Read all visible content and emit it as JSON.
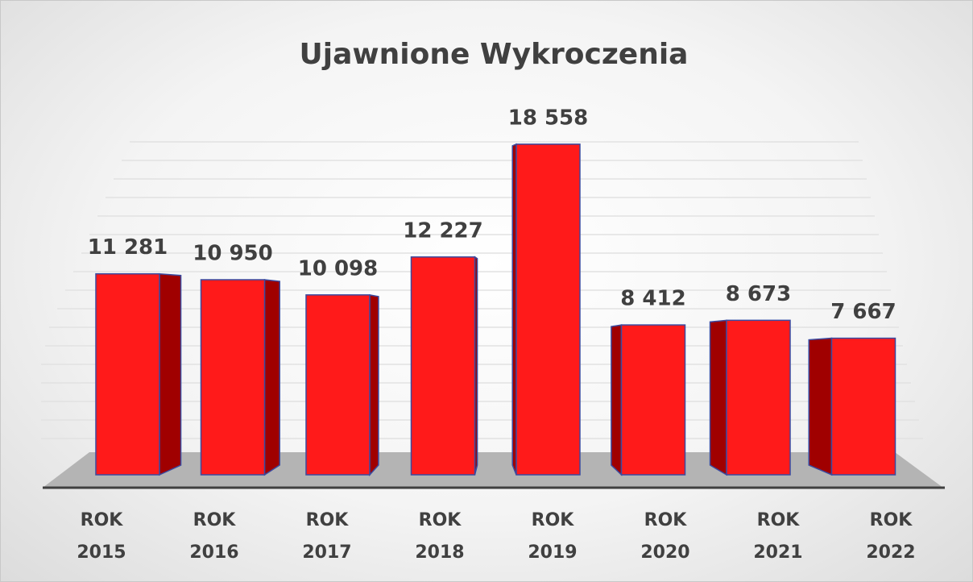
{
  "chart_data": {
    "type": "bar",
    "title": "Ujawnione Wykroczenia",
    "categories": [
      "ROK 2015",
      "ROK 2016",
      "ROK 2017",
      "ROK 2018",
      "ROK 2019",
      "ROK 2020",
      "ROK 2021",
      "ROK 2022"
    ],
    "values": [
      11281,
      10950,
      10098,
      12227,
      18558,
      8412,
      8673,
      7667
    ],
    "value_labels": [
      "11 281",
      "10 950",
      "10 098",
      "12 227",
      "18 558",
      "8 412",
      "8 673",
      "7 667"
    ],
    "color": "#ff1a1a",
    "ylim": [
      0,
      20000
    ]
  }
}
